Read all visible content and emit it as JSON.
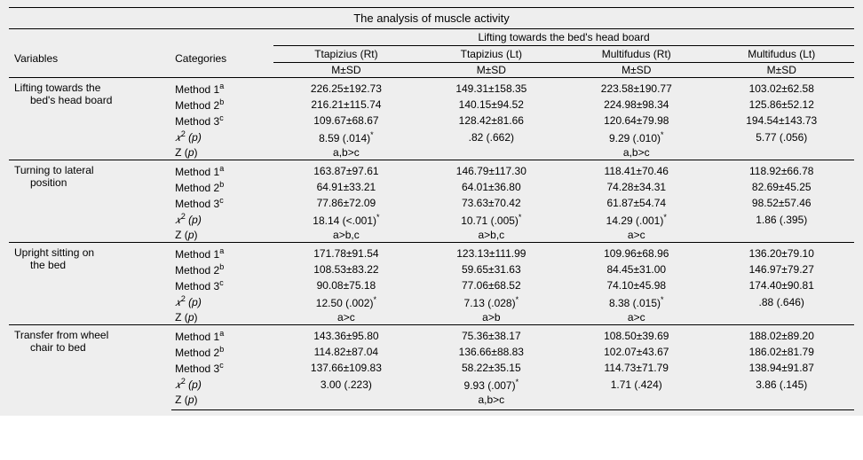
{
  "title": "The analysis of muscle activity",
  "colgroup_header": "Lifting towards the bed's head board",
  "header": {
    "variables": "Variables",
    "categories": "Categories",
    "cols": [
      "Ttapizius (Rt)",
      "Ttapizius (Lt)",
      "Multifudus (Rt)",
      "Multifudus (Lt)"
    ],
    "subhead": "M±SD"
  },
  "cat_labels": {
    "m1": "Method 1",
    "m2": "Method 2",
    "m3": "Method 3",
    "sup_a": "a",
    "sup_b": "b",
    "sup_c": "c",
    "chi": "𝑥",
    "chi_sup": "2",
    "p_paren": " (p)",
    "z": "Z (p)"
  },
  "groups": [
    {
      "var_line1": "Lifting towards the",
      "var_line2": "bed's head board",
      "m1": [
        "226.25±192.73",
        "149.31±158.35",
        "223.58±190.77",
        "103.02±62.58"
      ],
      "m2": [
        "216.21±115.74",
        "140.15±94.52",
        "224.98±98.34",
        "125.86±52.12"
      ],
      "m3": [
        "109.67±68.67",
        "128.42±81.66",
        "120.64±79.98",
        "194.54±143.73"
      ],
      "chi": [
        "8.59 (.014)*",
        ".82 (.662)",
        "9.29 (.010)*",
        "5.77 (.056)"
      ],
      "z": [
        "a,b>c",
        "",
        "a,b>c",
        ""
      ]
    },
    {
      "var_line1": "Turning to lateral",
      "var_line2": "position",
      "m1": [
        "163.87±97.61",
        "146.79±117.30",
        "118.41±70.46",
        "118.92±66.78"
      ],
      "m2": [
        "64.91±33.21",
        "64.01±36.80",
        "74.28±34.31",
        "82.69±45.25"
      ],
      "m3": [
        "77.86±72.09",
        "73.63±70.42",
        "61.87±54.74",
        "98.52±57.46"
      ],
      "chi": [
        "18.14 (<.001)*",
        "10.71 (.005)*",
        "14.29 (.001)*",
        "1.86 (.395)"
      ],
      "z": [
        "a>b,c",
        "a>b,c",
        "a>c",
        ""
      ]
    },
    {
      "var_line1": "Upright sitting on",
      "var_line2": "the bed",
      "m1": [
        "171.78±91.54",
        "123.13±111.99",
        "109.96±68.96",
        "136.20±79.10"
      ],
      "m2": [
        "108.53±83.22",
        "59.65±31.63",
        "84.45±31.00",
        "146.97±79.27"
      ],
      "m3": [
        "90.08±75.18",
        "77.06±68.52",
        "74.10±45.98",
        "174.40±90.81"
      ],
      "chi": [
        "12.50 (.002)*",
        "7.13 (.028)*",
        "8.38 (.015)*",
        ".88 (.646)"
      ],
      "z": [
        "a>c",
        "a>b",
        "a>c",
        ""
      ]
    },
    {
      "var_line1": "Transfer from wheel",
      "var_line2": "chair to bed",
      "m1": [
        "143.36±95.80",
        "75.36±38.17",
        "108.50±39.69",
        "188.02±89.20"
      ],
      "m2": [
        "114.82±87.04",
        "136.66±88.83",
        "102.07±43.67",
        "186.02±81.79"
      ],
      "m3": [
        "137.66±109.83",
        "58.22±35.15",
        "114.73±71.79",
        "138.94±91.87"
      ],
      "chi": [
        "3.00 (.223)",
        "9.93 (.007)*",
        "1.71 (.424)",
        "3.86 (.145)"
      ],
      "z": [
        "",
        "a,b>c",
        "",
        ""
      ]
    }
  ],
  "colors": {
    "bg": "#eeeeee",
    "border": "#000000",
    "text": "#000000"
  }
}
